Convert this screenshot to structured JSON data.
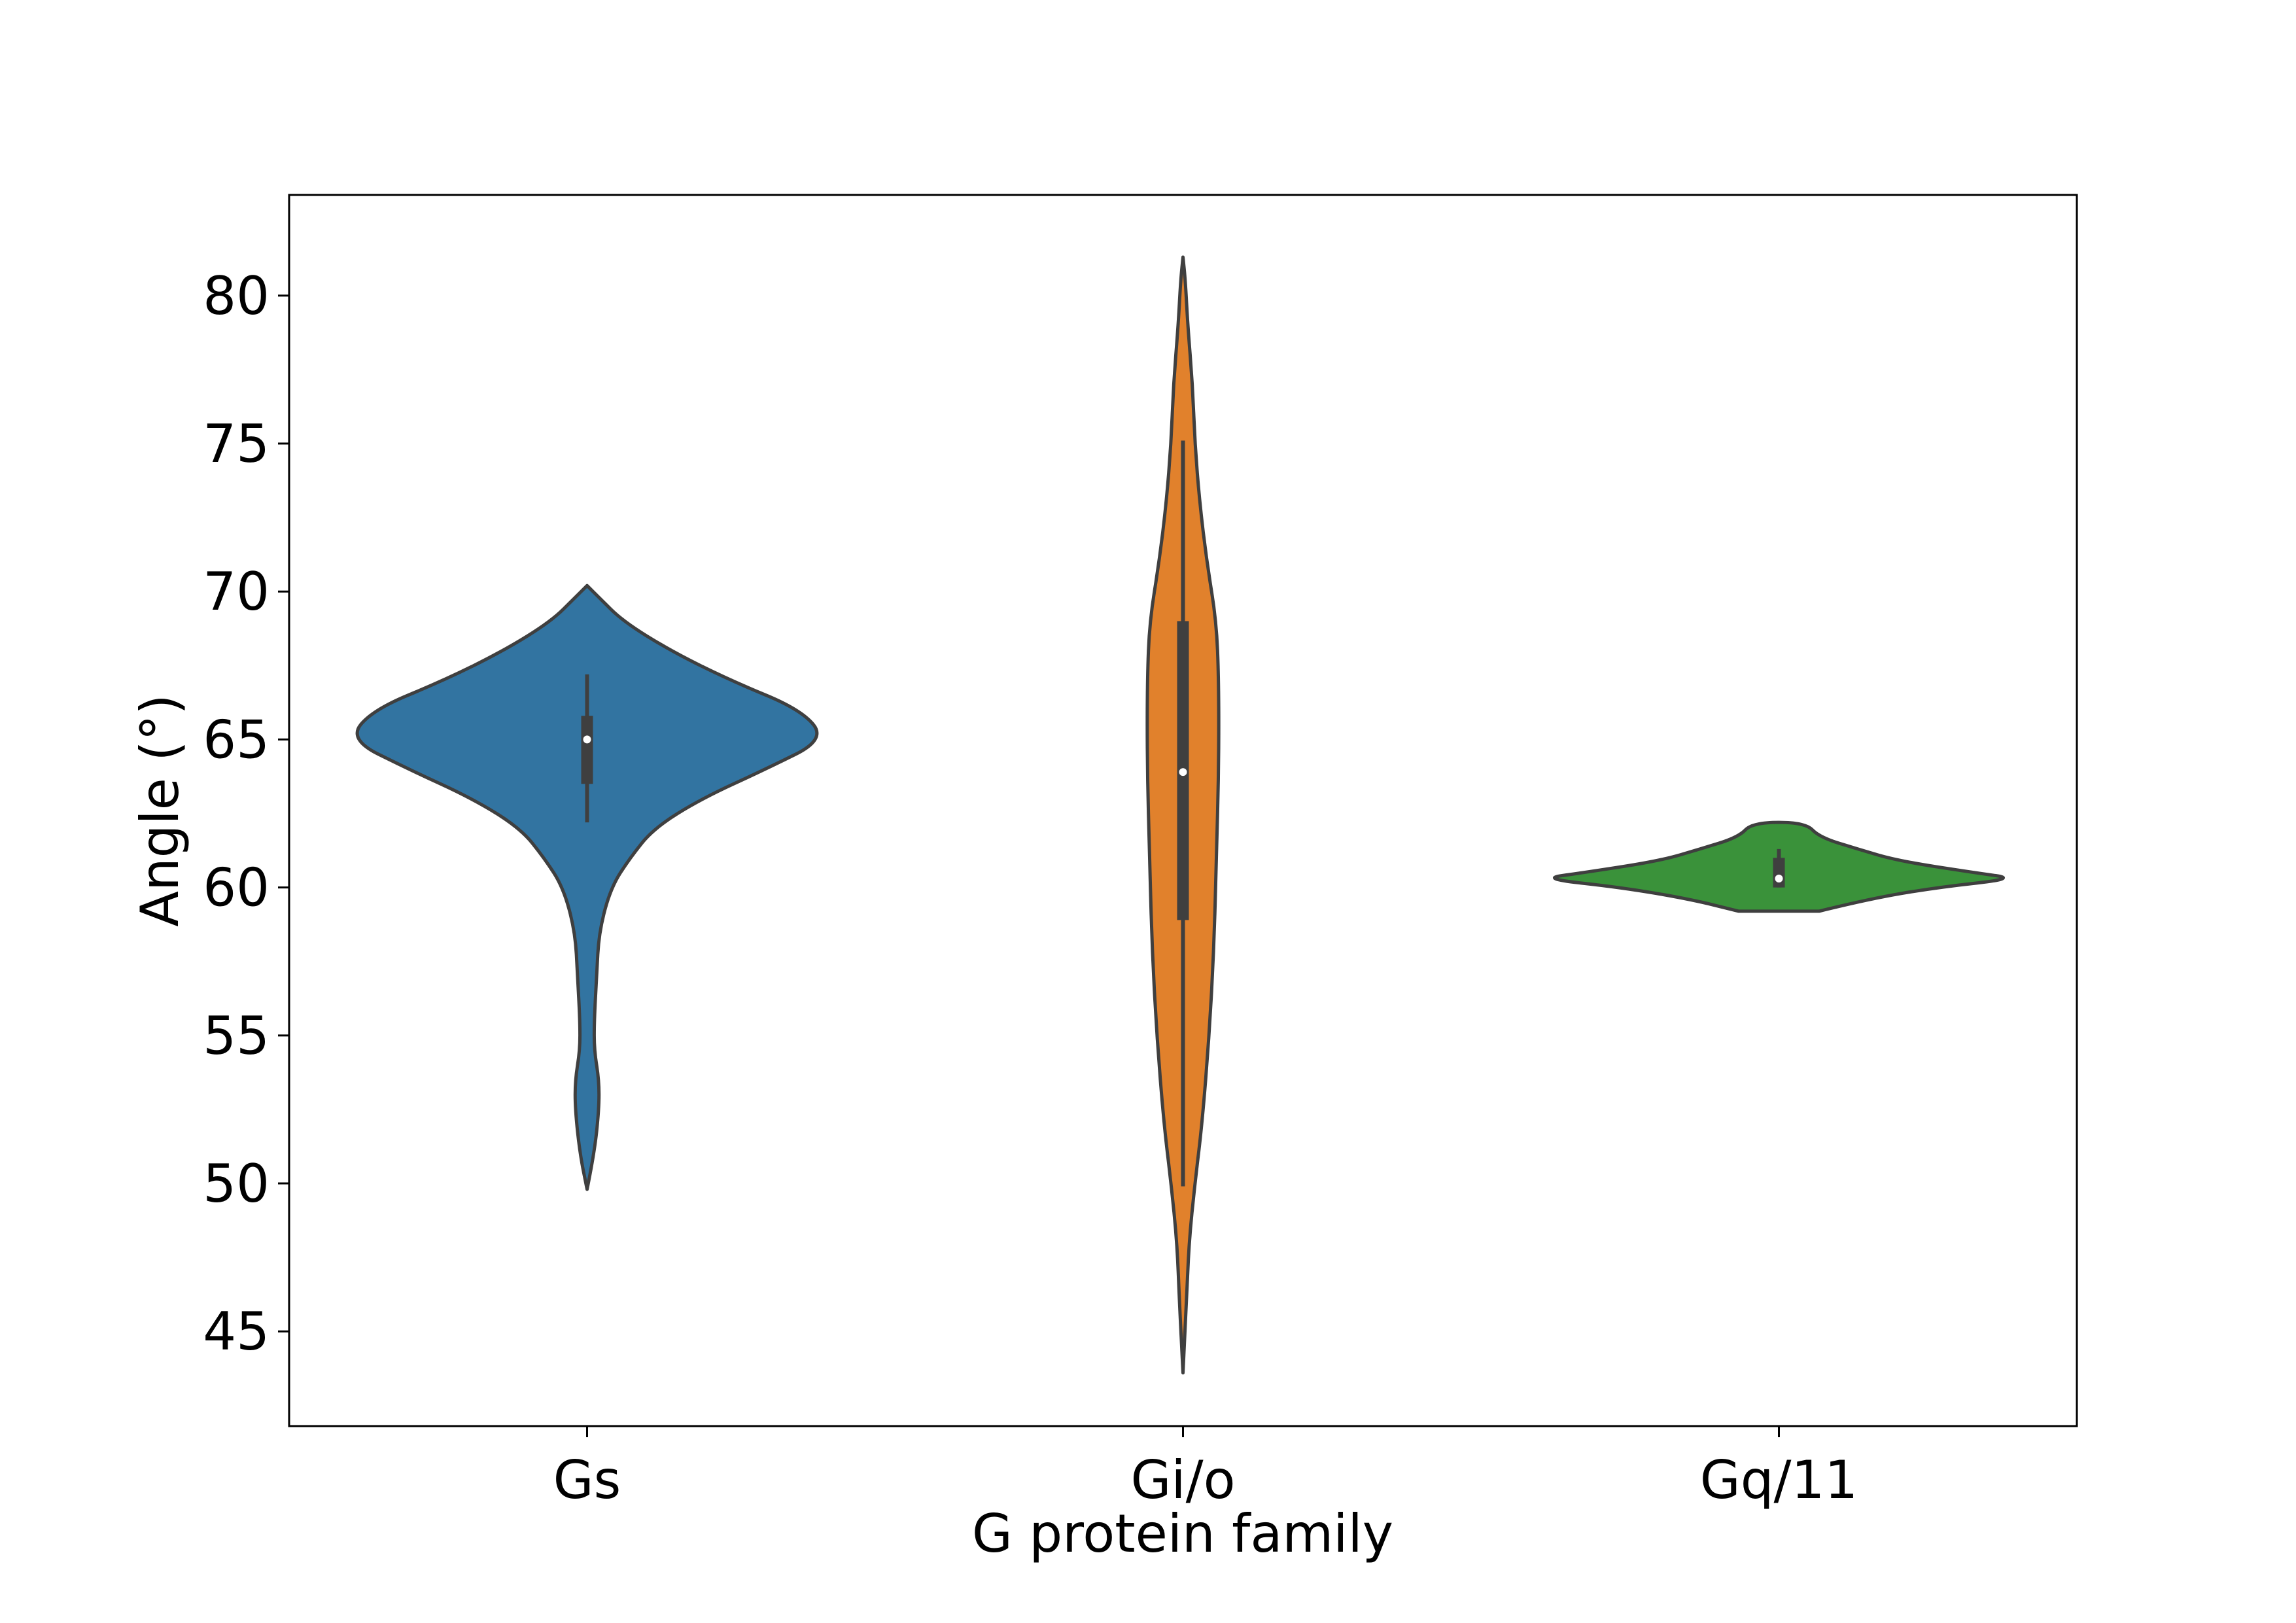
{
  "chart_data": {
    "type": "violin",
    "title": "",
    "xlabel": "G protein family",
    "ylabel": "Angle (°)",
    "categories": [
      "Gs",
      "Gi/o",
      "Gq/11"
    ],
    "ylim": [
      41.8,
      83.4
    ],
    "yticks": [
      45,
      50,
      55,
      60,
      65,
      70,
      75,
      80
    ],
    "grid": false,
    "legend": "none",
    "series": [
      {
        "category": "Gs",
        "color": "#3274a1",
        "min": 49.8,
        "max": 70.2,
        "q1": 63.5,
        "median": 65.0,
        "q3": 65.8,
        "whisker_low": 62.2,
        "whisker_high": 67.2,
        "density": [
          [
            49.8,
            0
          ],
          [
            51.0,
            0.03
          ],
          [
            52.5,
            0.05
          ],
          [
            53.5,
            0.05
          ],
          [
            54.5,
            0.03
          ],
          [
            55.5,
            0.03
          ],
          [
            57,
            0.04
          ],
          [
            58.5,
            0.05
          ],
          [
            60,
            0.1
          ],
          [
            61,
            0.18
          ],
          [
            62,
            0.28
          ],
          [
            63,
            0.48
          ],
          [
            64,
            0.75
          ],
          [
            65,
            1.0
          ],
          [
            66,
            0.9
          ],
          [
            67,
            0.6
          ],
          [
            68,
            0.35
          ],
          [
            69,
            0.15
          ],
          [
            69.8,
            0.05
          ],
          [
            70.2,
            0
          ]
        ]
      },
      {
        "category": "Gi/o",
        "color": "#e1812c",
        "min": 43.6,
        "max": 81.3,
        "q1": 58.9,
        "median": 63.9,
        "q3": 69.0,
        "whisker_low": 49.9,
        "whisker_high": 75.1,
        "density": [
          [
            43.6,
            0
          ],
          [
            46,
            0.015
          ],
          [
            48,
            0.025
          ],
          [
            50,
            0.05
          ],
          [
            52,
            0.08
          ],
          [
            55,
            0.11
          ],
          [
            58,
            0.13
          ],
          [
            61,
            0.14
          ],
          [
            64,
            0.15
          ],
          [
            67,
            0.15
          ],
          [
            69,
            0.14
          ],
          [
            71,
            0.1
          ],
          [
            73,
            0.07
          ],
          [
            75,
            0.05
          ],
          [
            77,
            0.04
          ],
          [
            79,
            0.02
          ],
          [
            80.5,
            0.01
          ],
          [
            81.3,
            0
          ]
        ]
      },
      {
        "category": "Gq/11",
        "color": "#3a923a",
        "min": 59.2,
        "max": 62.2,
        "q1": 60.0,
        "median": 60.3,
        "q3": 61.0,
        "whisker_low": 60.0,
        "whisker_high": 61.3,
        "density": [
          [
            59.2,
            0.17
          ],
          [
            59.6,
            0.37
          ],
          [
            60.0,
            0.66
          ],
          [
            60.3,
            1.0
          ],
          [
            60.5,
            0.82
          ],
          [
            60.9,
            0.5
          ],
          [
            61.3,
            0.33
          ],
          [
            61.7,
            0.17
          ],
          [
            62.2,
            0.11
          ]
        ]
      }
    ]
  }
}
